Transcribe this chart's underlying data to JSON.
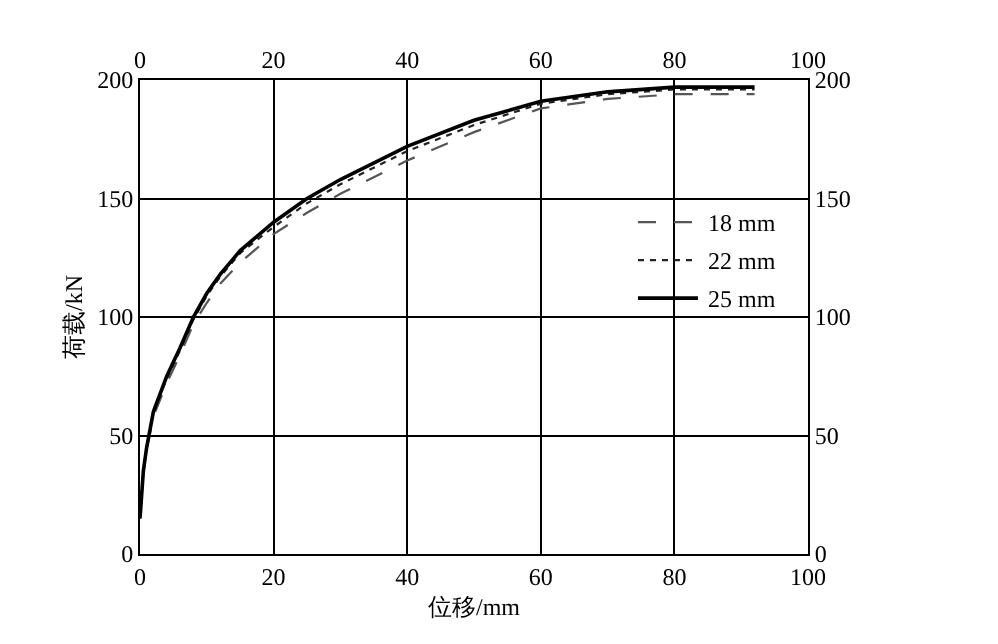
{
  "chart_data": {
    "type": "line",
    "xlabel": "位移/mm",
    "ylabel": "荷载/kN",
    "xlim": [
      0,
      100
    ],
    "xticks": [
      0,
      20,
      40,
      60,
      80,
      100
    ],
    "x2lim": [
      0,
      100
    ],
    "x2ticks": [
      0,
      20,
      40,
      60,
      80,
      100
    ],
    "ylim": [
      0,
      200
    ],
    "yticks": [
      0,
      50,
      100,
      150,
      200
    ],
    "y2lim": [
      0,
      200
    ],
    "y2ticks": [
      0,
      50,
      100,
      150,
      200
    ],
    "grid": true,
    "legend": "right",
    "marker": "none",
    "series": [
      {
        "name": "18 mm",
        "color": "#555555",
        "line_style": "dashed",
        "x": [
          0,
          0.5,
          1,
          2,
          4,
          6,
          8,
          10,
          12,
          15,
          20,
          25,
          30,
          40,
          50,
          60,
          70,
          80,
          92
        ],
        "values": [
          15,
          34,
          44,
          58,
          72,
          84,
          97,
          106,
          114,
          123,
          135,
          144,
          152,
          166,
          178,
          188,
          192,
          194,
          194
        ]
      },
      {
        "name": "22 mm",
        "color": "#222222",
        "line_style": "dotted",
        "x": [
          0,
          0.5,
          1,
          2,
          4,
          6,
          8,
          10,
          12,
          15,
          20,
          25,
          30,
          40,
          50,
          60,
          70,
          80,
          92
        ],
        "values": [
          15,
          35,
          45,
          60,
          74,
          86,
          99,
          109,
          117,
          127,
          138,
          148,
          156,
          170,
          181,
          190,
          194,
          196,
          196
        ]
      },
      {
        "name": "25 mm",
        "color": "#000000",
        "line_style": "solid",
        "x": [
          0,
          0.5,
          1,
          2,
          4,
          6,
          8,
          10,
          12,
          15,
          20,
          25,
          30,
          40,
          50,
          60,
          70,
          80,
          92
        ],
        "values": [
          15,
          35,
          45,
          60,
          75,
          87,
          100,
          110,
          118,
          128,
          140,
          150,
          158,
          172,
          183,
          191,
          195,
          197,
          197
        ]
      }
    ]
  }
}
